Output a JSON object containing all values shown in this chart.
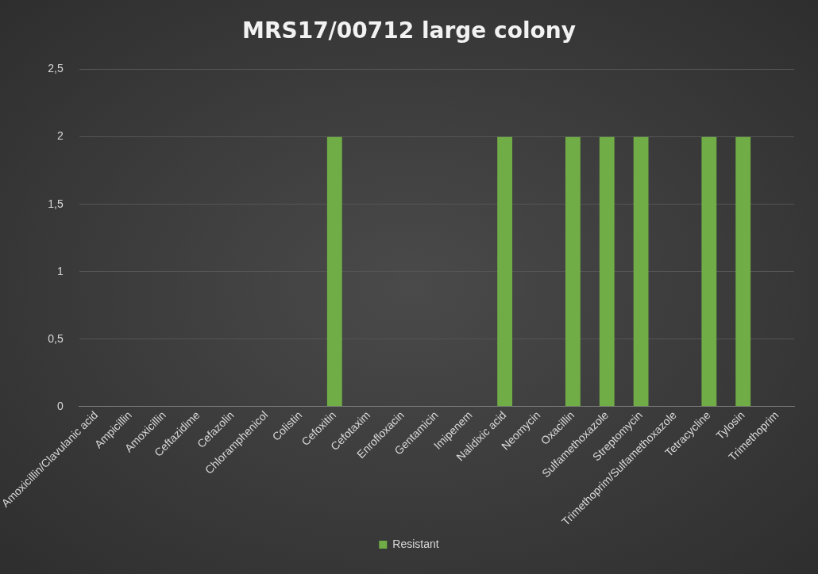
{
  "chart_data": {
    "type": "bar",
    "title": "MRS17/00712 large colony",
    "categories": [
      "Amoxicillin/Clavulanic acid",
      "Ampicillin",
      "Amoxicillin",
      "Ceftazidime",
      "Cefazolin",
      "Chloramphenicol",
      "Colistin",
      "Cefoxitin",
      "Cefotaxim",
      "Enrofloxacin",
      "Gentamicin",
      "Imipenem",
      "Nalidixic acid",
      "Neomycin",
      "Oxacillin",
      "Sulfamethoxazole",
      "Streptomycin",
      "Trimethoprim/Sulfamethoxazole",
      "Tetracycline",
      "Tylosin",
      "Trimethoprim"
    ],
    "series": [
      {
        "name": "Resistant",
        "color": "#70ad47",
        "values": [
          0,
          0,
          0,
          0,
          0,
          0,
          0,
          2,
          0,
          0,
          0,
          0,
          2,
          0,
          2,
          2,
          2,
          0,
          2,
          2,
          0
        ]
      }
    ],
    "ylim": [
      0,
      2.5
    ],
    "yticks": [
      0,
      {
        "value": 0.5,
        "label": "0,5"
      },
      1,
      {
        "value": 1.5,
        "label": "1,5"
      },
      2,
      {
        "value": 2.5,
        "label": "2,5"
      }
    ],
    "grid": "y",
    "legend": "bottom"
  }
}
